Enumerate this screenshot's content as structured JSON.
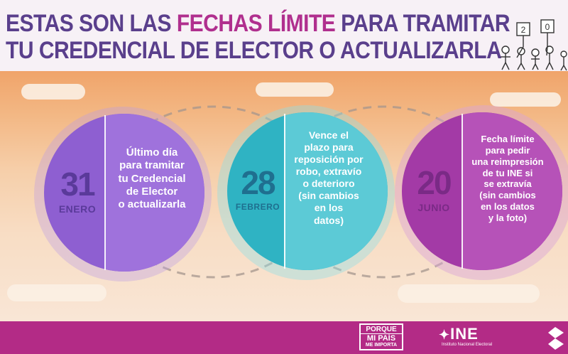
{
  "title": {
    "line1_pre": "ESTAS SON LAS ",
    "line1_highlight": "FECHAS LÍMITE",
    "line1_post": " PARA TRAMITAR",
    "line2": "TU CREDENCIAL DE ELECTOR O ACTUALIZARLA"
  },
  "illustration": {
    "signs": [
      "2",
      "0"
    ]
  },
  "deadlines": [
    {
      "day": "31",
      "month": "ENERO",
      "description": "Último día\npara tramitar\ntu Credencial\nde Elector\no actualizarla",
      "number_color": "#5a3a9a"
    },
    {
      "day": "28",
      "month": "FEBRERO",
      "description": "Vence el\nplazo para\nreposición por\nrobo, extravío\no deterioro\n(sin cambios\nen los\ndatos)",
      "number_color": "#1f6f8f"
    },
    {
      "day": "20",
      "month": "JUNIO",
      "description": "Fecha límite\npara pedir\nuna reimpresión\nde tu INE si\nse extravía\n(sin cambios\nen los datos\ny la foto)",
      "number_color": "#7a2a86"
    }
  ],
  "footer": {
    "campaign_line1": "PORQUE",
    "campaign_line2": "MI PAÍS",
    "campaign_line3": "ME IMPORTA",
    "ine_logo": "INE",
    "ine_subtitle": "Instituto Nacional Electoral"
  },
  "colors": {
    "title_purple": "#5a3f8c",
    "title_magenta": "#b02f8e",
    "footer_magenta": "#b32b86"
  }
}
